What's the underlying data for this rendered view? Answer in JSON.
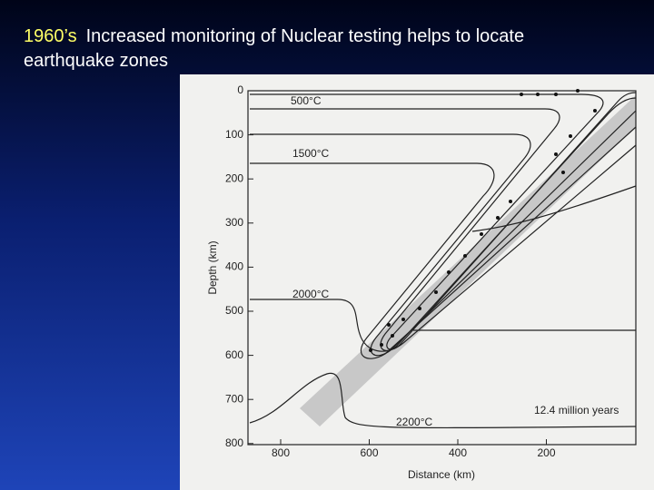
{
  "slide": {
    "title_year": "1960’s",
    "title_text": "Increased monitoring of Nuclear testing helps to locate earthquake zones"
  },
  "figure": {
    "y_axis_label": "Depth (km)",
    "y_ticks": [
      "0",
      "100",
      "200",
      "300",
      "400",
      "500",
      "600",
      "700",
      "800"
    ],
    "x_axis_label": "Distance (km)",
    "x_ticks": [
      "800",
      "600",
      "400",
      "200"
    ],
    "isotherm_labels": [
      "500°C",
      "1500°C",
      "2000°C",
      "2200°C"
    ],
    "annotation": "12.4 million years"
  }
}
